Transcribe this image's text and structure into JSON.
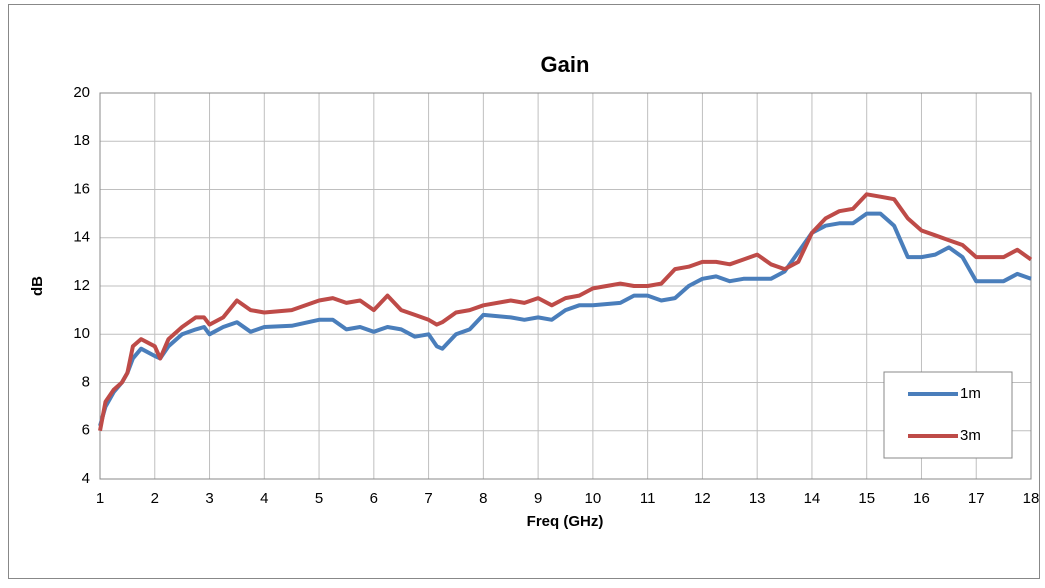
{
  "chart_data": {
    "type": "line",
    "title": "Gain",
    "xlabel": "Freq (GHz)",
    "ylabel": "dB",
    "x": [
      1.0,
      1.1,
      1.25,
      1.4,
      1.5,
      1.6,
      1.75,
      2.0,
      2.1,
      2.25,
      2.5,
      2.75,
      2.9,
      3.0,
      3.25,
      3.5,
      3.75,
      4.0,
      4.5,
      5.0,
      5.25,
      5.5,
      5.75,
      6.0,
      6.25,
      6.5,
      6.75,
      7.0,
      7.15,
      7.25,
      7.5,
      7.75,
      8.0,
      8.5,
      8.75,
      9.0,
      9.25,
      9.5,
      9.75,
      10.0,
      10.5,
      10.75,
      11.0,
      11.25,
      11.5,
      11.75,
      12.0,
      12.25,
      12.5,
      12.75,
      13.0,
      13.25,
      13.5,
      13.75,
      14.0,
      14.25,
      14.5,
      14.75,
      15.0,
      15.25,
      15.5,
      15.75,
      16.0,
      16.25,
      16.5,
      16.75,
      17.0,
      17.5,
      17.75,
      18.0
    ],
    "series": [
      {
        "name": "1m",
        "color": "#4a7ebb",
        "values": [
          6.2,
          7.0,
          7.6,
          8.0,
          8.4,
          9.0,
          9.4,
          9.1,
          9.0,
          9.5,
          10.0,
          10.2,
          10.3,
          10.0,
          10.3,
          10.5,
          10.1,
          10.3,
          10.35,
          10.6,
          10.6,
          10.2,
          10.3,
          10.1,
          10.3,
          10.2,
          9.9,
          10.0,
          9.5,
          9.4,
          10.0,
          10.2,
          10.8,
          10.7,
          10.6,
          10.7,
          10.6,
          11.0,
          11.2,
          11.2,
          11.3,
          11.6,
          11.6,
          11.4,
          11.5,
          12.0,
          12.3,
          12.4,
          12.2,
          12.3,
          12.3,
          12.3,
          12.6,
          13.4,
          14.2,
          14.5,
          14.6,
          14.6,
          15.0,
          15.0,
          14.5,
          13.2,
          13.2,
          13.3,
          13.6,
          13.2,
          12.2,
          12.2,
          12.5,
          12.3
        ]
      },
      {
        "name": "3m",
        "color": "#be4b48",
        "values": [
          6.0,
          7.2,
          7.7,
          8.0,
          8.4,
          9.5,
          9.8,
          9.5,
          9.0,
          9.8,
          10.3,
          10.7,
          10.7,
          10.4,
          10.7,
          11.4,
          11.0,
          10.9,
          11.0,
          11.4,
          11.5,
          11.3,
          11.4,
          11.0,
          11.6,
          11.0,
          10.8,
          10.6,
          10.4,
          10.5,
          10.9,
          11.0,
          11.2,
          11.4,
          11.3,
          11.5,
          11.2,
          11.5,
          11.6,
          11.9,
          12.1,
          12.0,
          12.0,
          12.1,
          12.7,
          12.8,
          13.0,
          13.0,
          12.9,
          13.1,
          13.3,
          12.9,
          12.7,
          13.0,
          14.2,
          14.8,
          15.1,
          15.2,
          15.8,
          15.7,
          15.6,
          14.8,
          14.3,
          14.1,
          13.9,
          13.7,
          13.2,
          13.2,
          13.5,
          13.1
        ]
      }
    ],
    "xlim": [
      1,
      18
    ],
    "xticks": [
      1,
      2,
      3,
      4,
      5,
      6,
      7,
      8,
      9,
      10,
      11,
      12,
      13,
      14,
      15,
      16,
      17,
      18
    ],
    "ylim": [
      4,
      20
    ],
    "yticks": [
      4,
      6,
      8,
      10,
      12,
      14,
      16,
      18,
      20
    ],
    "grid": true,
    "legend": "lower right"
  }
}
